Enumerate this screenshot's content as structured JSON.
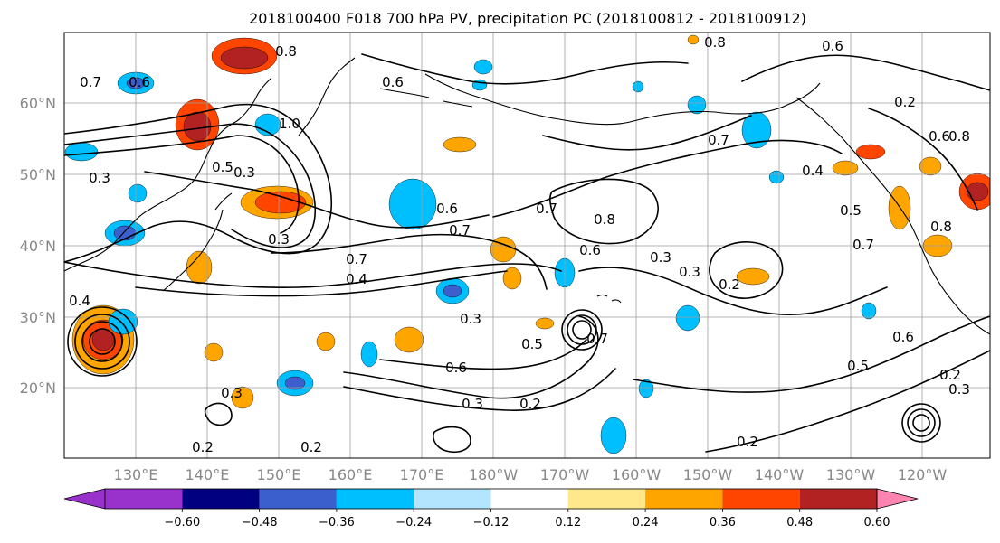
{
  "title": "2018100400 F018 700 hPa PV, precipitation PC (2018100812 - 2018100912)",
  "map": {
    "lat_ticks": [
      "20°N",
      "30°N",
      "40°N",
      "50°N",
      "60°N"
    ],
    "lon_ticks": [
      "130°E",
      "140°E",
      "150°E",
      "160°E",
      "170°E",
      "180°W",
      "170°W",
      "160°W",
      "150°W",
      "140°W",
      "130°W",
      "120°W"
    ],
    "contour_labels": [
      "0.8",
      "0.7",
      "0.6",
      "1.0",
      "0.3",
      "0.6",
      "0.5",
      "0.3",
      "0.6",
      "0.7",
      "0.4",
      "0.3",
      "0.7",
      "0.8",
      "0.6",
      "0.3",
      "0.3",
      "0.2",
      "0.7",
      "0.6",
      "0.3",
      "0.2",
      "0.2",
      "0.8",
      "0.6",
      "0.7",
      "0.5",
      "0.4",
      "0.7",
      "0.8",
      "0.2",
      "0.8",
      "0.3",
      "0.4",
      "0.7",
      "0.2",
      "0.2",
      "0.3",
      "0.2",
      "0.3",
      "0.5",
      "0.6",
      "0.6",
      "0.5"
    ]
  },
  "colorbar": {
    "colors": [
      "#9932cc",
      "#000080",
      "#3b5fcc",
      "#00bfff",
      "#b3e5ff",
      "#ffffff",
      "#ffe88a",
      "#ffa500",
      "#ff4500",
      "#b22222",
      "#ff85b0"
    ],
    "tick_labels": [
      "−0.60",
      "−0.48",
      "−0.36",
      "−0.24",
      "−0.12",
      "0.12",
      "0.24",
      "0.36",
      "0.48",
      "0.60"
    ]
  },
  "chart_data": {
    "type": "heatmap",
    "title": "2018100400 F018 700 hPa PV, precipitation PC (2018100812 - 2018100912)",
    "lat_range": [
      "10°N",
      "70°N"
    ],
    "lon_range": [
      "120°E",
      "115°W"
    ],
    "colorbar_levels": [
      -0.6,
      -0.48,
      -0.36,
      -0.24,
      -0.12,
      0.12,
      0.24,
      0.36,
      0.48,
      0.6
    ],
    "colorbar_extend": "both",
    "contour_levels_labeled": [
      0.2,
      0.3,
      0.4,
      0.5,
      0.6,
      0.7,
      0.8,
      1.0
    ],
    "grid": true
  }
}
